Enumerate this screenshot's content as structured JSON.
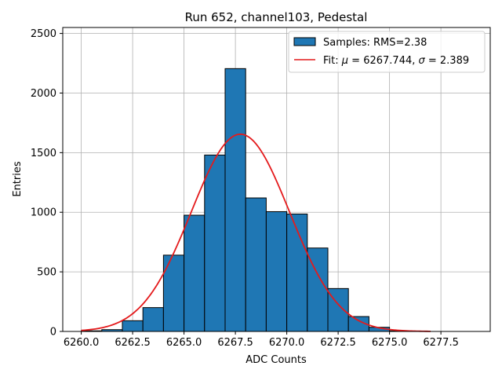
{
  "chart_data": {
    "type": "bar",
    "title": "Run 652, channel103, Pedestal",
    "xlabel": "ADC Counts",
    "ylabel": "Entries",
    "xlim": [
      6259.1,
      6279.9
    ],
    "ylim": [
      0,
      2550
    ],
    "grid": true,
    "legend_position": "top-right",
    "x_ticks": [
      "6260.0",
      "6262.5",
      "6265.0",
      "6267.5",
      "6270.0",
      "6272.5",
      "6275.0",
      "6277.5"
    ],
    "x_tick_values": [
      6260.0,
      6262.5,
      6265.0,
      6267.5,
      6270.0,
      6272.5,
      6275.0,
      6277.5
    ],
    "y_ticks": [
      "0",
      "500",
      "1000",
      "1500",
      "2000",
      "2500"
    ],
    "y_tick_values": [
      0,
      500,
      1000,
      1500,
      2000,
      2500
    ],
    "histogram": {
      "name": "Samples: RMS=2.38",
      "color": "#1f77b4",
      "edge_color": "#000000",
      "bin_edges": [
        6260,
        6261,
        6262,
        6263,
        6264,
        6265,
        6266,
        6267,
        6268,
        6269,
        6270,
        6271,
        6272,
        6273,
        6274,
        6275,
        6276,
        6277,
        6278,
        6279
      ],
      "counts": [
        5,
        15,
        90,
        200,
        640,
        975,
        1480,
        2205,
        1120,
        1005,
        985,
        700,
        360,
        125,
        35,
        5,
        0,
        0,
        0
      ]
    },
    "fit": {
      "name_prefix": "Fit: ",
      "mu_symbol": "μ",
      "mu_text": " = 6267.744, ",
      "sigma_symbol": "σ",
      "sigma_text": " = 2.389",
      "color": "#e41a1c",
      "mu": 6267.744,
      "sigma": 2.389,
      "amplitude": 1655,
      "x_range": [
        6260.0,
        6277.0
      ]
    }
  }
}
